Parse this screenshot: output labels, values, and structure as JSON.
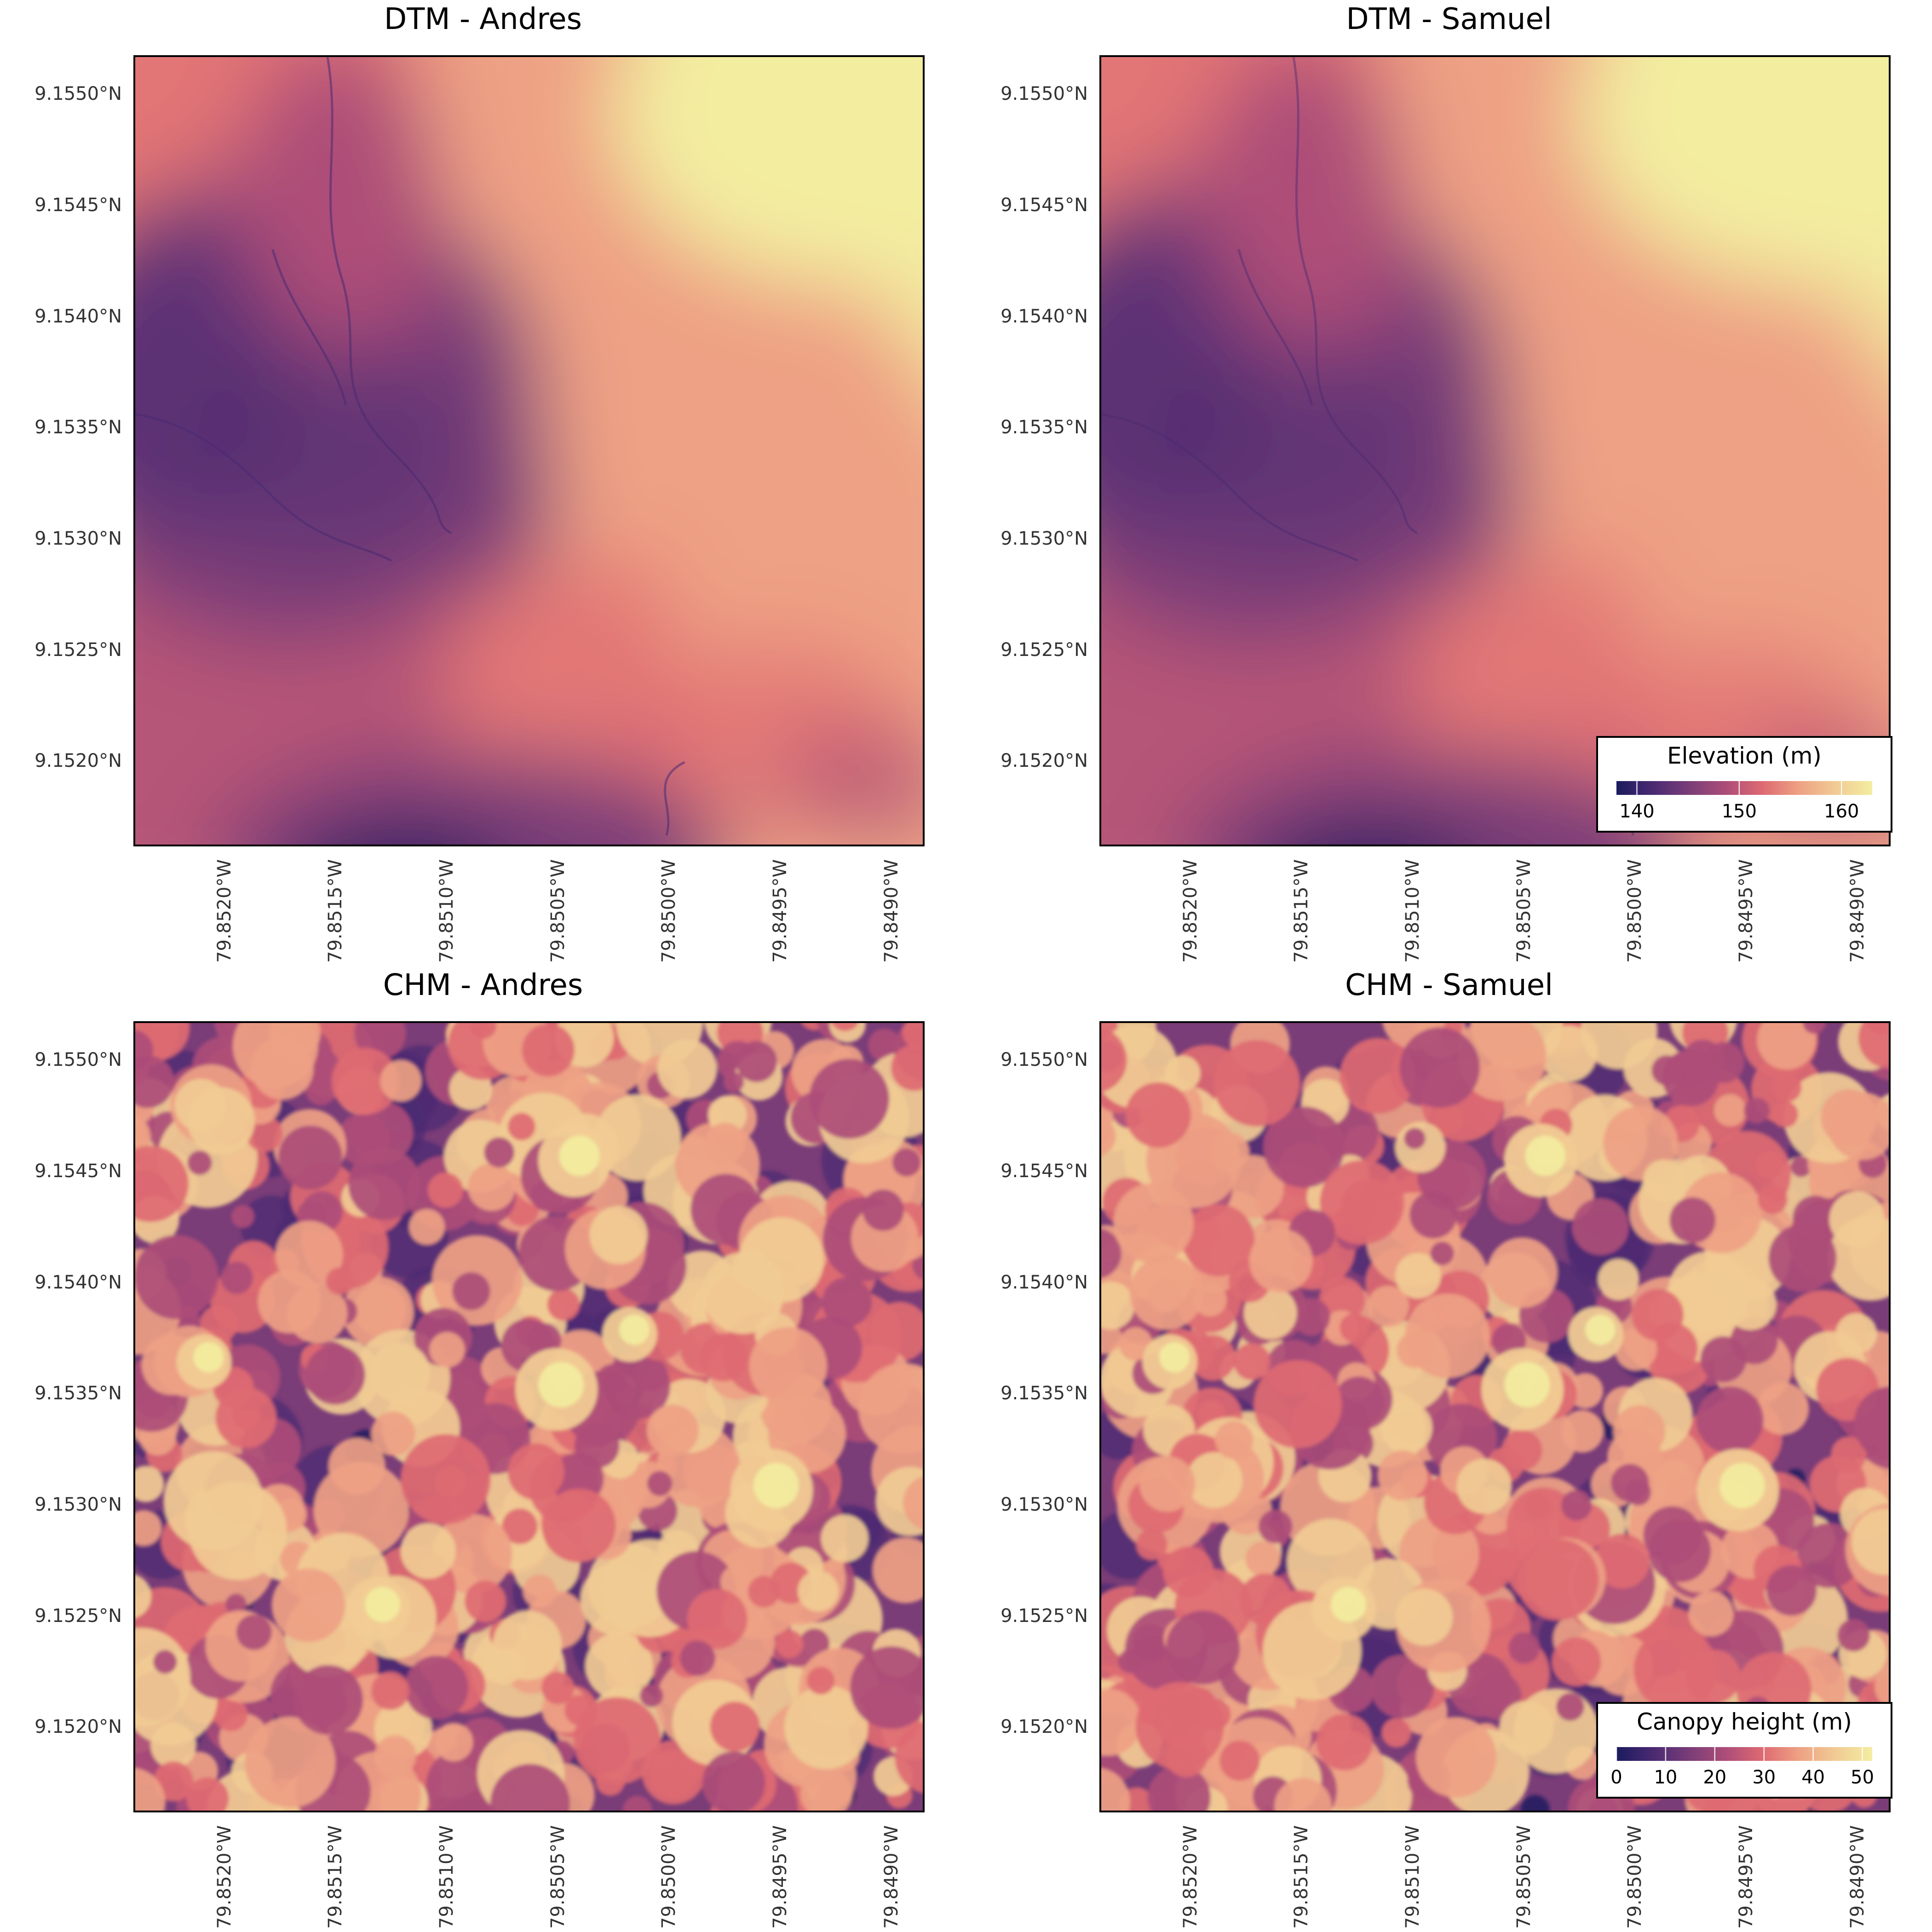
{
  "panels": [
    {
      "id": "dtm-andres",
      "title": "DTM - Andres",
      "kind": "dtm",
      "variant": 0
    },
    {
      "id": "dtm-samuel",
      "title": "DTM - Samuel",
      "kind": "dtm",
      "variant": 1
    },
    {
      "id": "chm-andres",
      "title": "CHM - Andres",
      "kind": "chm",
      "variant": 0
    },
    {
      "id": "chm-samuel",
      "title": "CHM - Samuel",
      "kind": "chm",
      "variant": 1
    }
  ],
  "lat_ticks": [
    "9.1550°N",
    "9.1545°N",
    "9.1540°N",
    "9.1535°N",
    "9.1530°N",
    "9.1525°N",
    "9.1520°N"
  ],
  "lat_values": [
    9.155,
    9.1545,
    9.154,
    9.1535,
    9.153,
    9.1525,
    9.152
  ],
  "lon_ticks": [
    "79.8520°W",
    "79.8515°W",
    "79.8510°W",
    "79.8505°W",
    "79.8500°W",
    "79.8495°W",
    "79.8490°W"
  ],
  "lon_values": [
    79.852,
    79.8515,
    79.851,
    79.8505,
    79.85,
    79.8495,
    79.849
  ],
  "extent": {
    "lon_west": 79.85245,
    "lon_east": 79.8489,
    "lat_north": 9.15517,
    "lat_south": 9.15162
  },
  "colormap": [
    "#1b1b5e",
    "#4a2a72",
    "#7a3d78",
    "#ad4d78",
    "#de6a72",
    "#eea184",
    "#f1cb94",
    "#f3eda0"
  ],
  "legends": {
    "dtm": {
      "title": "Elevation (m)",
      "min": 138,
      "max": 163,
      "ticks": [
        "140",
        "150",
        "160"
      ],
      "tick_values": [
        140,
        150,
        160
      ]
    },
    "chm": {
      "title": "Canopy height (m)",
      "min": 0,
      "max": 52,
      "ticks": [
        "0",
        "10",
        "20",
        "30",
        "40",
        "50"
      ],
      "tick_values": [
        0,
        10,
        20,
        30,
        40,
        50
      ]
    }
  }
}
